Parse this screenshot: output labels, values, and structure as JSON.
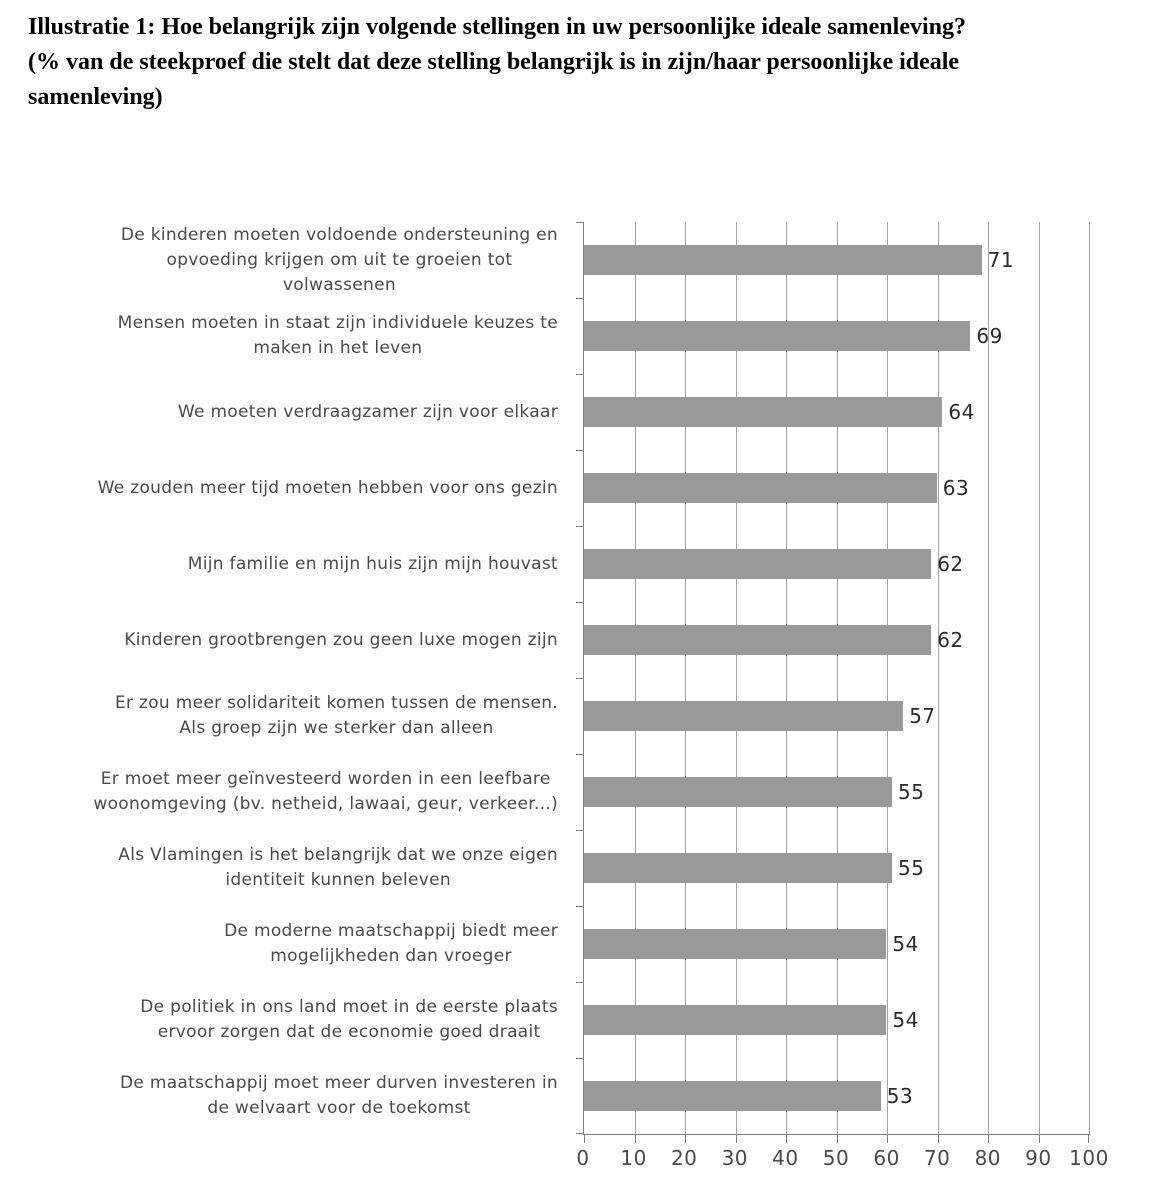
{
  "title": "Illustratie 1: Hoe belangrijk zijn volgende stellingen in uw persoonlijke ideale samenleving?\n(% van de steekproef die stelt dat deze stelling belangrijk is in zijn/haar persoonlijke ideale\nsamenleving)",
  "chart_data": {
    "type": "bar",
    "orientation": "horizontal",
    "title": "Illustratie 1: Hoe belangrijk zijn volgende stellingen in uw persoonlijke ideale samenleving? (% van de steekproef die stelt dat deze stelling belangrijk is in zijn/haar persoonlijke ideale samenleving)",
    "categories": [
      "De kinderen moeten voldoende ondersteuning en opvoeding krijgen om uit te groeien tot volwassenen",
      "Mensen moeten in staat zijn individuele keuzes te maken in het leven",
      "We moeten verdraagzamer zijn voor elkaar",
      "We zouden meer tijd moeten hebben voor ons gezin",
      "Mijn familie en mijn huis zijn mijn houvast",
      "Kinderen grootbrengen zou geen luxe mogen zijn",
      "Er zou meer solidariteit komen tussen de mensen. Als groep zijn we sterker dan alleen",
      "Er moet meer geïnvesteerd worden in een leefbare woonomgeving (bv. netheid, lawaai, geur, verkeer...)",
      "Als Vlamingen is het belangrijk dat we onze eigen identiteit kunnen beleven",
      "De moderne maatschappij biedt meer mogelijkheden dan vroeger",
      "De politiek in ons land moet in de eerste plaats ervoor zorgen dat de economie goed draait",
      "De maatschappij moet meer durven investeren in de welvaart voor de toekomst"
    ],
    "values": [
      71,
      69,
      64,
      63,
      62,
      62,
      57,
      55,
      55,
      54,
      54,
      53
    ],
    "xlabel": "",
    "ylabel": "",
    "xlim": [
      0,
      100
    ],
    "xticks": [
      0,
      10,
      20,
      30,
      40,
      50,
      60,
      70,
      80,
      90,
      100
    ],
    "grid": true,
    "legend": false,
    "bar_color": "#999999"
  },
  "rows": [
    {
      "label": "De kinderen moeten voldoende ondersteuning en\nopvoeding krijgen om uit te groeien tot\nvolwassenen",
      "value": 71,
      "value_label": "71"
    },
    {
      "label": "Mensen moeten in staat zijn individuele keuzes te\nmaken in het leven",
      "value": 69,
      "value_label": "69"
    },
    {
      "label": "We moeten verdraagzamer zijn voor elkaar",
      "value": 64,
      "value_label": "64"
    },
    {
      "label": "We zouden meer tijd moeten hebben voor ons gezin",
      "value": 63,
      "value_label": "63"
    },
    {
      "label": "Mijn familie en mijn huis zijn mijn houvast",
      "value": 62,
      "value_label": "62"
    },
    {
      "label": "Kinderen grootbrengen zou geen luxe mogen zijn",
      "value": 62,
      "value_label": "62"
    },
    {
      "label": "Er zou meer solidariteit komen tussen de mensen.\nAls groep zijn we sterker dan alleen",
      "value": 57,
      "value_label": "57"
    },
    {
      "label": "Er moet meer geïnvesteerd worden in een leefbare\nwoonomgeving (bv. netheid, lawaai, geur, verkeer...)",
      "value": 55,
      "value_label": "55"
    },
    {
      "label": "Als Vlamingen is het belangrijk dat we onze eigen\nidentiteit kunnen beleven",
      "value": 55,
      "value_label": "55"
    },
    {
      "label": "De moderne maatschappij biedt meer\nmogelijkheden dan vroeger",
      "value": 54,
      "value_label": "54"
    },
    {
      "label": "De politiek in ons land moet in de eerste plaats\nervoor zorgen dat de economie goed draait",
      "value": 54,
      "value_label": "54"
    },
    {
      "label": "De maatschappij moet meer durven investeren in\nde welvaart voor de toekomst",
      "value": 53,
      "value_label": "53"
    }
  ],
  "axis": {
    "tick_labels": [
      "0",
      "10",
      "20",
      "30",
      "40",
      "50",
      "60",
      "70",
      "80",
      "90",
      "100"
    ]
  },
  "colors": {
    "bar": "#999999",
    "axis_line": "#808080",
    "gridline": "#a0a0a0",
    "category_text": "#4a4a4a",
    "value_text": "#2b2b2b"
  }
}
